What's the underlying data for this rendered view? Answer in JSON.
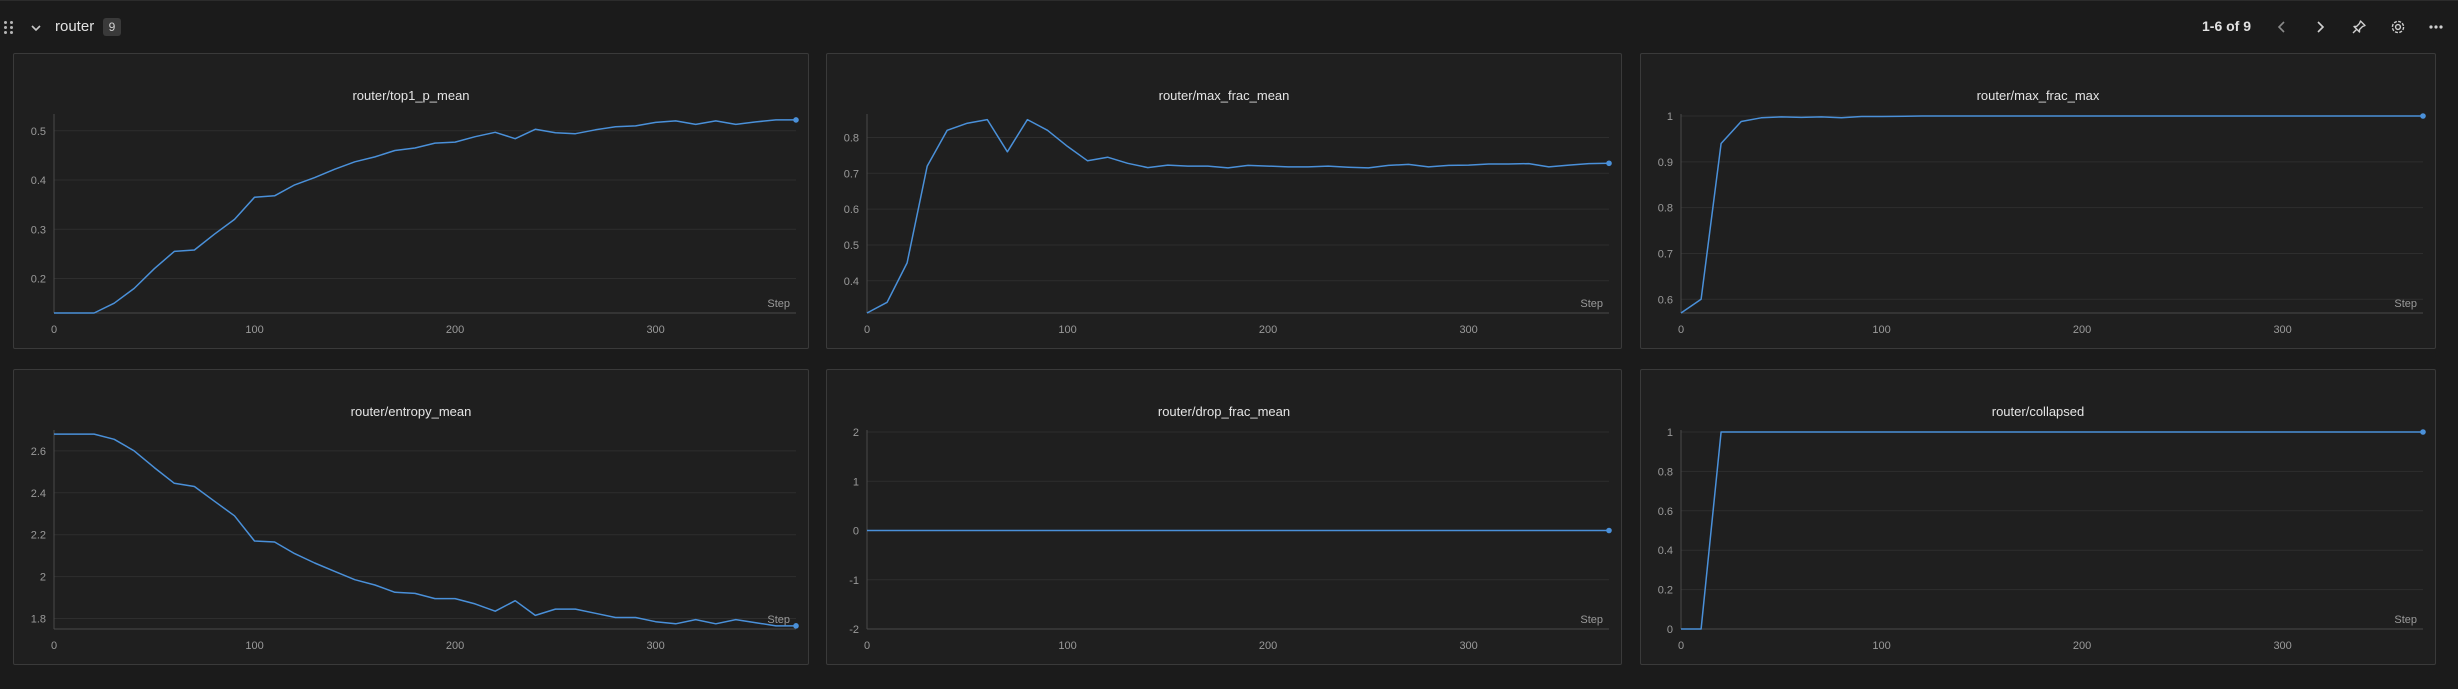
{
  "section": {
    "title": "router",
    "count": "9",
    "range": "1-6 of 9"
  },
  "theme": {
    "line_color": "#4a90d9",
    "grid_color": "#2e2e2e",
    "axis_color": "#4a4a4a"
  },
  "toolbar": {
    "prev_icon": "chevron-left-icon",
    "next_icon": "chevron-right-icon",
    "pin_icon": "pin-icon",
    "settings_icon": "gear-icon",
    "more_icon": "more-horizontal-icon"
  },
  "chart_data": [
    {
      "type": "line",
      "title": "router/top1_p_mean",
      "xlabel": "Step",
      "xlim": [
        0,
        370
      ],
      "ylim": [
        0.13,
        0.53
      ],
      "xticks": [
        0,
        100,
        200,
        300
      ],
      "yticks": [
        0.2,
        0.3,
        0.4,
        0.5
      ],
      "ytick_labels": [
        "0.2",
        "0.3",
        "0.4",
        "0.5"
      ],
      "x": [
        0,
        10,
        20,
        30,
        40,
        50,
        60,
        70,
        80,
        90,
        100,
        110,
        120,
        130,
        140,
        150,
        160,
        170,
        180,
        190,
        200,
        210,
        220,
        230,
        240,
        250,
        260,
        270,
        280,
        290,
        300,
        310,
        320,
        330,
        340,
        350,
        360,
        370
      ],
      "y": [
        0.13,
        0.13,
        0.13,
        0.15,
        0.18,
        0.22,
        0.255,
        0.258,
        0.29,
        0.32,
        0.365,
        0.368,
        0.39,
        0.405,
        0.422,
        0.437,
        0.447,
        0.46,
        0.465,
        0.475,
        0.477,
        0.488,
        0.497,
        0.484,
        0.503,
        0.496,
        0.494,
        0.502,
        0.508,
        0.51,
        0.517,
        0.52,
        0.513,
        0.52,
        0.513,
        0.518,
        0.522,
        0.522
      ]
    },
    {
      "type": "line",
      "title": "router/max_frac_mean",
      "xlabel": "Step",
      "xlim": [
        0,
        370
      ],
      "ylim": [
        0.31,
        0.86
      ],
      "xticks": [
        0,
        100,
        200,
        300
      ],
      "yticks": [
        0.4,
        0.5,
        0.6,
        0.7,
        0.8
      ],
      "ytick_labels": [
        "0.4",
        "0.5",
        "0.6",
        "0.7",
        "0.8"
      ],
      "x": [
        0,
        10,
        20,
        30,
        40,
        50,
        60,
        70,
        80,
        90,
        100,
        110,
        120,
        130,
        140,
        150,
        160,
        170,
        180,
        190,
        200,
        210,
        220,
        230,
        240,
        250,
        260,
        270,
        280,
        290,
        300,
        310,
        320,
        330,
        340,
        350,
        360,
        370
      ],
      "y": [
        0.31,
        0.34,
        0.45,
        0.72,
        0.82,
        0.84,
        0.85,
        0.76,
        0.85,
        0.82,
        0.775,
        0.735,
        0.745,
        0.728,
        0.716,
        0.723,
        0.72,
        0.72,
        0.715,
        0.722,
        0.72,
        0.718,
        0.718,
        0.72,
        0.717,
        0.715,
        0.722,
        0.725,
        0.718,
        0.722,
        0.723,
        0.726,
        0.726,
        0.727,
        0.718,
        0.723,
        0.727,
        0.728
      ]
    },
    {
      "type": "line",
      "title": "router/max_frac_max",
      "xlabel": "Step",
      "xlim": [
        0,
        370
      ],
      "ylim": [
        0.57,
        1.0
      ],
      "xticks": [
        0,
        100,
        200,
        300
      ],
      "yticks": [
        0.6,
        0.7,
        0.8,
        0.9,
        1.0
      ],
      "ytick_labels": [
        "0.6",
        "0.7",
        "0.8",
        "0.9",
        "1"
      ],
      "x": [
        0,
        10,
        20,
        30,
        40,
        50,
        60,
        70,
        80,
        90,
        100,
        120,
        150,
        200,
        250,
        300,
        350,
        370
      ],
      "y": [
        0.57,
        0.6,
        0.94,
        0.988,
        0.996,
        0.998,
        0.997,
        0.998,
        0.996,
        0.999,
        0.999,
        1.0,
        1.0,
        1.0,
        1.0,
        1.0,
        1.0,
        1.0
      ]
    },
    {
      "type": "line",
      "title": "router/entropy_mean",
      "xlabel": "Step",
      "xlim": [
        0,
        370
      ],
      "ylim": [
        1.75,
        2.69
      ],
      "xticks": [
        0,
        100,
        200,
        300
      ],
      "yticks": [
        1.8,
        2.0,
        2.2,
        2.4,
        2.6
      ],
      "ytick_labels": [
        "1.8",
        "2",
        "2.2",
        "2.4",
        "2.6"
      ],
      "x": [
        0,
        10,
        20,
        30,
        40,
        50,
        60,
        70,
        80,
        90,
        100,
        110,
        120,
        130,
        140,
        150,
        160,
        170,
        180,
        190,
        200,
        210,
        220,
        230,
        240,
        250,
        260,
        270,
        280,
        290,
        300,
        310,
        320,
        330,
        340,
        350,
        360,
        370
      ],
      "y": [
        2.68,
        2.68,
        2.68,
        2.655,
        2.6,
        2.52,
        2.445,
        2.43,
        2.36,
        2.29,
        2.17,
        2.165,
        2.11,
        2.065,
        2.025,
        1.985,
        1.96,
        1.925,
        1.92,
        1.895,
        1.895,
        1.87,
        1.835,
        1.885,
        1.815,
        1.845,
        1.845,
        1.825,
        1.805,
        1.805,
        1.785,
        1.775,
        1.795,
        1.775,
        1.795,
        1.78,
        1.765,
        1.765
      ]
    },
    {
      "type": "line",
      "title": "router/drop_frac_mean",
      "xlabel": "Step",
      "xlim": [
        0,
        370
      ],
      "ylim": [
        -2,
        2
      ],
      "xticks": [
        0,
        100,
        200,
        300
      ],
      "yticks": [
        -2,
        -1,
        0,
        1,
        2
      ],
      "ytick_labels": [
        "-2",
        "-1",
        "0",
        "1",
        "2"
      ],
      "x": [
        0,
        370
      ],
      "y": [
        0,
        0
      ]
    },
    {
      "type": "line",
      "title": "router/collapsed",
      "xlabel": "Step",
      "xlim": [
        0,
        370
      ],
      "ylim": [
        0,
        1
      ],
      "xticks": [
        0,
        100,
        200,
        300
      ],
      "yticks": [
        0,
        0.2,
        0.4,
        0.6,
        0.8,
        1.0
      ],
      "ytick_labels": [
        "0",
        "0.2",
        "0.4",
        "0.6",
        "0.8",
        "1"
      ],
      "x": [
        0,
        10,
        20,
        370
      ],
      "y": [
        0,
        0,
        1,
        1
      ]
    }
  ]
}
